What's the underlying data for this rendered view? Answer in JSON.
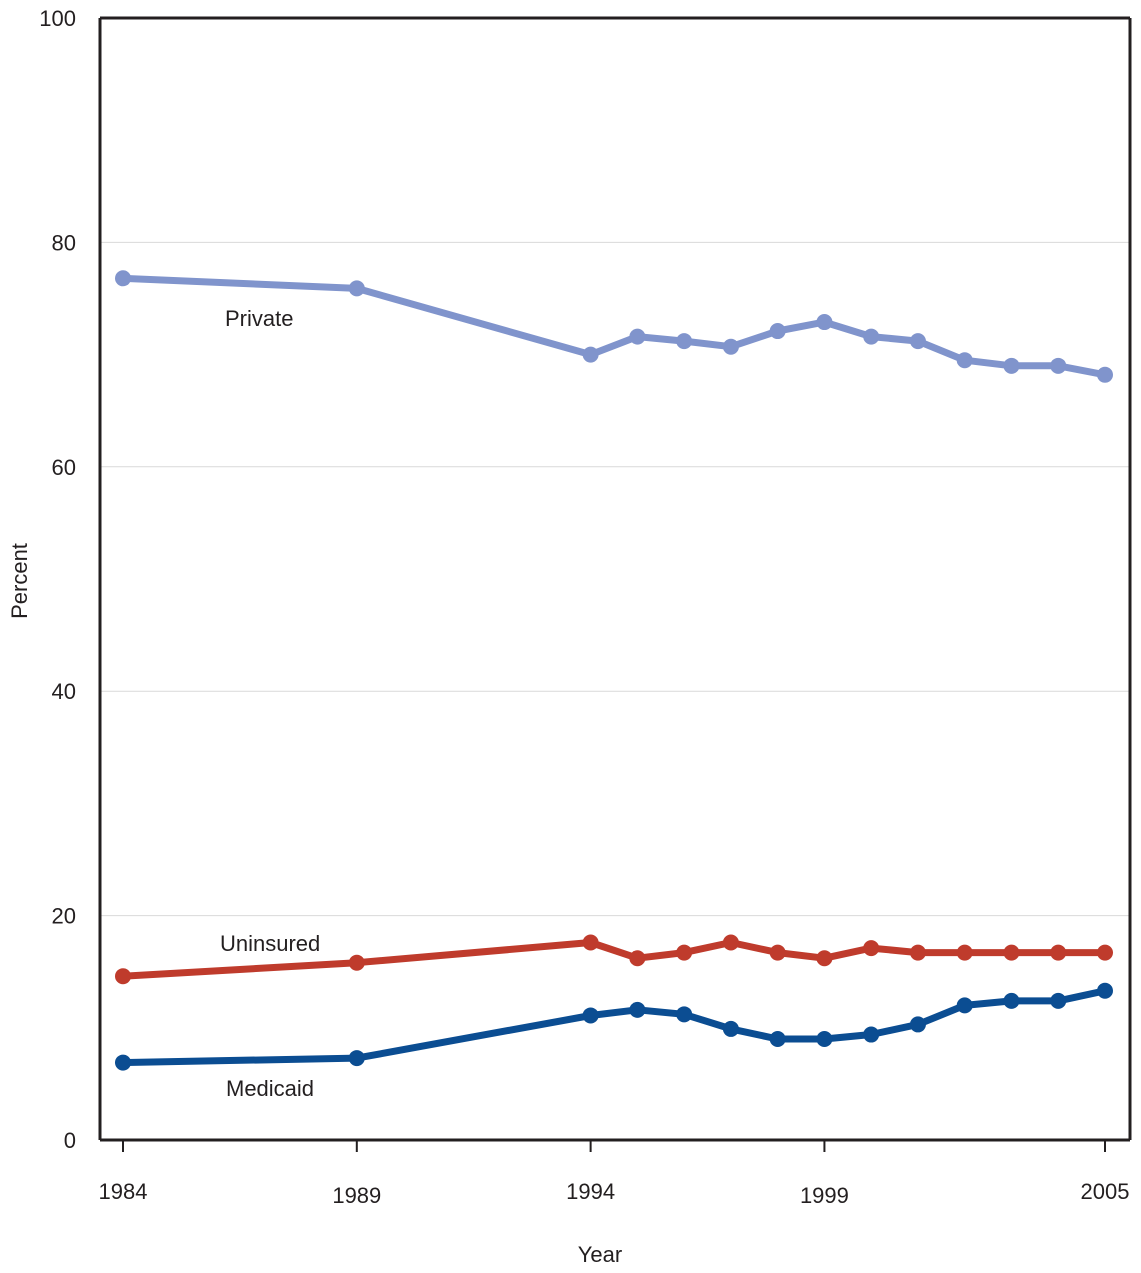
{
  "chart_data": {
    "type": "line",
    "title": "",
    "xlabel": "Year",
    "ylabel": "Percent",
    "xlim": [
      1984,
      2005
    ],
    "ylim": [
      0,
      100
    ],
    "x_ticks": [
      1984,
      1989,
      1994,
      1999,
      2005
    ],
    "x_tick_labels": [
      "1984",
      "1989",
      "1994",
      "1999",
      "2005"
    ],
    "y_ticks": [
      0,
      20,
      40,
      60,
      80,
      100
    ],
    "y_tick_labels": [
      "0",
      "20",
      "40",
      "60",
      "80",
      "100"
    ],
    "grid": "horizontal",
    "legend": "none",
    "x": [
      1984,
      1989,
      1994,
      1995,
      1996,
      1997,
      1998,
      1999,
      2000,
      2001,
      2002,
      2003,
      2004,
      2005
    ],
    "series": [
      {
        "name": "Private",
        "color": "#8094cc",
        "values": [
          76.8,
          75.9,
          70.0,
          71.6,
          71.2,
          70.7,
          72.1,
          72.9,
          71.6,
          71.2,
          69.5,
          69.0,
          69.0,
          68.2
        ]
      },
      {
        "name": "Uninsured",
        "color": "#bf3b2c",
        "values": [
          14.6,
          15.8,
          17.6,
          16.2,
          16.7,
          17.6,
          16.7,
          16.2,
          17.1,
          16.7,
          16.7,
          16.7,
          16.7,
          16.7
        ]
      },
      {
        "name": "Medicaid",
        "color": "#0b4d92",
        "values": [
          6.9,
          7.3,
          11.1,
          11.6,
          11.2,
          9.9,
          9.0,
          9.0,
          9.4,
          10.3,
          12.0,
          12.4,
          12.4,
          13.3
        ]
      }
    ]
  }
}
